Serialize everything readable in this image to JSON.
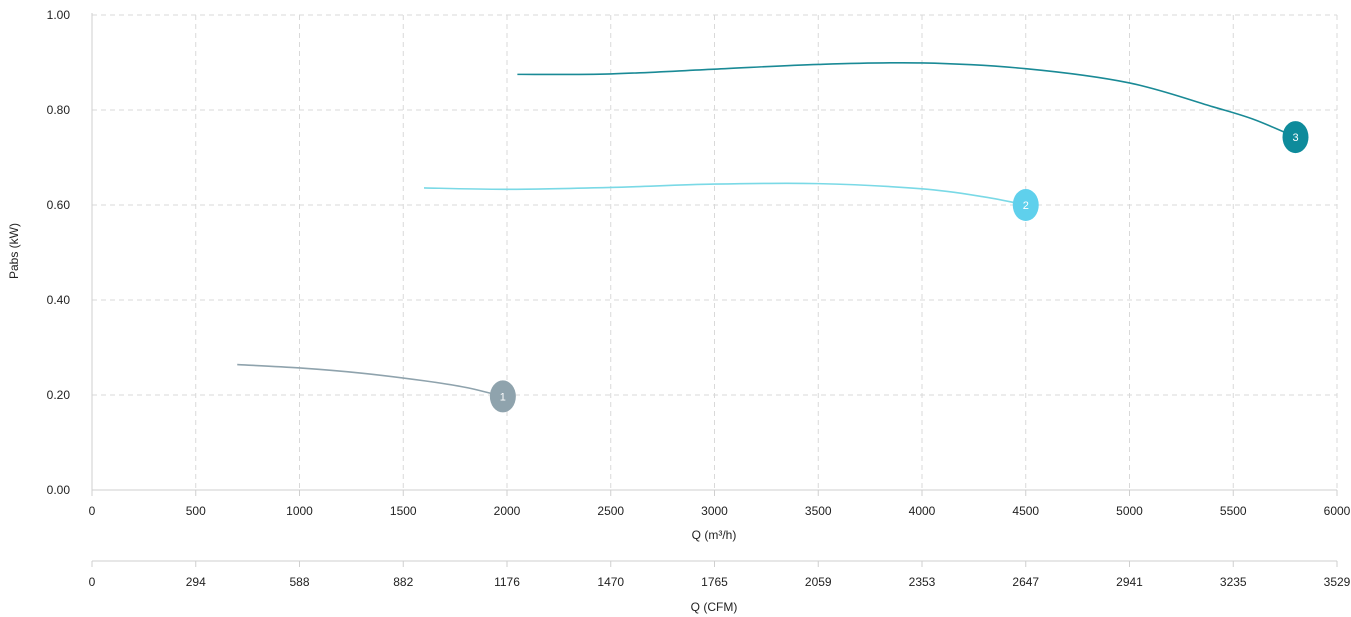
{
  "chart_data": {
    "type": "line",
    "title": "",
    "ylabel": "Pabs (kW)",
    "xlabel": "Q (m³/h)",
    "x2label": "Q (CFM)",
    "xlim": [
      0,
      6000
    ],
    "ylim": [
      0,
      1.0
    ],
    "grid": true,
    "y_ticks": [
      "0.00",
      "0.20",
      "0.40",
      "0.60",
      "0.80",
      "1.00"
    ],
    "x_ticks": [
      "0",
      "500",
      "1000",
      "1500",
      "2000",
      "2500",
      "3000",
      "3500",
      "4000",
      "4500",
      "5000",
      "5500",
      "6000"
    ],
    "x2_ticks": [
      "0",
      "294",
      "588",
      "882",
      "1176",
      "1470",
      "1765",
      "2059",
      "2353",
      "2647",
      "2941",
      "3235",
      "3529"
    ],
    "series": [
      {
        "label": "1",
        "color": "#8fa3ad",
        "points": [
          [
            700,
            0.264
          ],
          [
            1000,
            0.257
          ],
          [
            1300,
            0.246
          ],
          [
            1600,
            0.23
          ],
          [
            1800,
            0.216
          ],
          [
            1980,
            0.197
          ]
        ]
      },
      {
        "label": "2",
        "color": "#7ad9e6",
        "points": [
          [
            1600,
            0.636
          ],
          [
            2000,
            0.633
          ],
          [
            2500,
            0.637
          ],
          [
            3000,
            0.644
          ],
          [
            3500,
            0.645
          ],
          [
            4000,
            0.634
          ],
          [
            4300,
            0.617
          ],
          [
            4500,
            0.6
          ]
        ]
      },
      {
        "label": "3",
        "color": "#1a8a96",
        "points": [
          [
            2050,
            0.875
          ],
          [
            2500,
            0.876
          ],
          [
            3000,
            0.886
          ],
          [
            3500,
            0.896
          ],
          [
            4000,
            0.899
          ],
          [
            4500,
            0.887
          ],
          [
            5000,
            0.857
          ],
          [
            5400,
            0.807
          ],
          [
            5600,
            0.78
          ],
          [
            5800,
            0.743
          ]
        ]
      }
    ],
    "markers": [
      {
        "label": "1",
        "x": 1980,
        "y": 0.197,
        "color": "#8fa3ad"
      },
      {
        "label": "2",
        "x": 4500,
        "y": 0.6,
        "color": "#5fd0ec"
      },
      {
        "label": "3",
        "x": 5800,
        "y": 0.743,
        "color": "#0e8b9b"
      }
    ]
  }
}
